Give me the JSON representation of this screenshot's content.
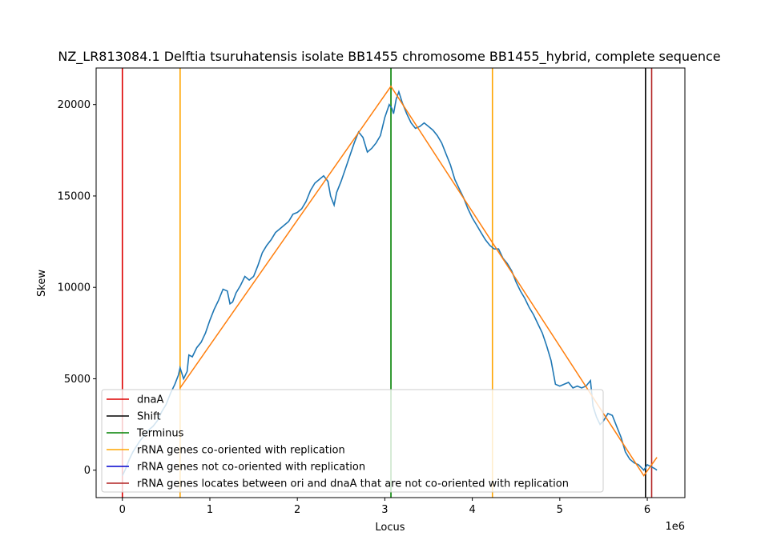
{
  "chart_data": {
    "type": "line",
    "title": "NZ_LR813084.1 Delftia tsuruhatensis isolate BB1455 chromosome BB1455_hybrid, complete sequence",
    "xlabel": "Locus",
    "ylabel": "Skew",
    "x_offset_label": "1e6",
    "xlim": [
      -300000,
      6430000
    ],
    "ylim": [
      -1500,
      22000
    ],
    "x_ticks": [
      0,
      1000000,
      2000000,
      3000000,
      4000000,
      5000000,
      6000000
    ],
    "x_tick_labels": [
      "0",
      "1",
      "2",
      "3",
      "4",
      "5",
      "6"
    ],
    "y_ticks": [
      0,
      5000,
      10000,
      15000,
      20000
    ],
    "y_tick_labels": [
      "0",
      "5000",
      "10000",
      "15000",
      "20000"
    ],
    "grid": false,
    "legend_position": "lower-left",
    "colors": {
      "skew": "#1f77b4",
      "fit": "#ff7f0e",
      "dnaA": "#dd0000",
      "shift": "#000000",
      "terminus": "#008000",
      "rrna_co": "#ffa500",
      "rrna_not_co": "#0000cd",
      "rrna_between": "#b22222"
    },
    "series": [
      {
        "key": "skew",
        "points": [
          [
            0,
            -300
          ],
          [
            40000,
            100
          ],
          [
            80000,
            600
          ],
          [
            120000,
            1000
          ],
          [
            160000,
            1300
          ],
          [
            200000,
            1600
          ],
          [
            250000,
            1900
          ],
          [
            300000,
            2200
          ],
          [
            350000,
            2400
          ],
          [
            400000,
            2700
          ],
          [
            450000,
            3200
          ],
          [
            500000,
            3600
          ],
          [
            550000,
            4200
          ],
          [
            600000,
            4700
          ],
          [
            640000,
            5200
          ],
          [
            660000,
            5600
          ],
          [
            700000,
            5000
          ],
          [
            740000,
            5400
          ],
          [
            760000,
            6300
          ],
          [
            800000,
            6200
          ],
          [
            850000,
            6700
          ],
          [
            900000,
            7000
          ],
          [
            950000,
            7500
          ],
          [
            1000000,
            8200
          ],
          [
            1050000,
            8800
          ],
          [
            1100000,
            9300
          ],
          [
            1150000,
            9900
          ],
          [
            1200000,
            9800
          ],
          [
            1230000,
            9100
          ],
          [
            1260000,
            9200
          ],
          [
            1300000,
            9700
          ],
          [
            1350000,
            10100
          ],
          [
            1400000,
            10600
          ],
          [
            1450000,
            10400
          ],
          [
            1500000,
            10600
          ],
          [
            1550000,
            11200
          ],
          [
            1600000,
            11900
          ],
          [
            1650000,
            12300
          ],
          [
            1700000,
            12600
          ],
          [
            1750000,
            13000
          ],
          [
            1800000,
            13200
          ],
          [
            1850000,
            13400
          ],
          [
            1900000,
            13600
          ],
          [
            1950000,
            14000
          ],
          [
            2000000,
            14100
          ],
          [
            2050000,
            14300
          ],
          [
            2100000,
            14700
          ],
          [
            2150000,
            15300
          ],
          [
            2200000,
            15700
          ],
          [
            2250000,
            15900
          ],
          [
            2300000,
            16100
          ],
          [
            2350000,
            15800
          ],
          [
            2380000,
            15000
          ],
          [
            2420000,
            14500
          ],
          [
            2450000,
            15200
          ],
          [
            2500000,
            15800
          ],
          [
            2550000,
            16500
          ],
          [
            2600000,
            17200
          ],
          [
            2650000,
            17900
          ],
          [
            2700000,
            18500
          ],
          [
            2750000,
            18200
          ],
          [
            2800000,
            17400
          ],
          [
            2850000,
            17600
          ],
          [
            2900000,
            17900
          ],
          [
            2950000,
            18300
          ],
          [
            3000000,
            19300
          ],
          [
            3050000,
            20000
          ],
          [
            3080000,
            19800
          ],
          [
            3100000,
            19500
          ],
          [
            3130000,
            20300
          ],
          [
            3160000,
            20700
          ],
          [
            3200000,
            20100
          ],
          [
            3250000,
            19500
          ],
          [
            3300000,
            19000
          ],
          [
            3350000,
            18700
          ],
          [
            3400000,
            18800
          ],
          [
            3450000,
            19000
          ],
          [
            3500000,
            18800
          ],
          [
            3550000,
            18600
          ],
          [
            3600000,
            18300
          ],
          [
            3650000,
            17900
          ],
          [
            3700000,
            17300
          ],
          [
            3750000,
            16700
          ],
          [
            3800000,
            15900
          ],
          [
            3850000,
            15400
          ],
          [
            3900000,
            14900
          ],
          [
            3950000,
            14300
          ],
          [
            4000000,
            13800
          ],
          [
            4050000,
            13400
          ],
          [
            4100000,
            13000
          ],
          [
            4150000,
            12600
          ],
          [
            4200000,
            12300
          ],
          [
            4250000,
            12100
          ],
          [
            4300000,
            12100
          ],
          [
            4350000,
            11600
          ],
          [
            4400000,
            11300
          ],
          [
            4450000,
            10900
          ],
          [
            4500000,
            10300
          ],
          [
            4550000,
            9800
          ],
          [
            4600000,
            9400
          ],
          [
            4650000,
            8900
          ],
          [
            4700000,
            8500
          ],
          [
            4750000,
            8000
          ],
          [
            4800000,
            7500
          ],
          [
            4850000,
            6800
          ],
          [
            4900000,
            6000
          ],
          [
            4950000,
            4700
          ],
          [
            5000000,
            4600
          ],
          [
            5050000,
            4700
          ],
          [
            5100000,
            4800
          ],
          [
            5150000,
            4500
          ],
          [
            5200000,
            4600
          ],
          [
            5250000,
            4500
          ],
          [
            5300000,
            4600
          ],
          [
            5350000,
            4900
          ],
          [
            5380000,
            3500
          ],
          [
            5420000,
            2900
          ],
          [
            5460000,
            2500
          ],
          [
            5500000,
            2700
          ],
          [
            5550000,
            3100
          ],
          [
            5600000,
            3000
          ],
          [
            5650000,
            2400
          ],
          [
            5700000,
            1800
          ],
          [
            5750000,
            1000
          ],
          [
            5800000,
            600
          ],
          [
            5850000,
            400
          ],
          [
            5900000,
            300
          ],
          [
            5960000,
            0
          ],
          [
            6000000,
            300
          ],
          [
            6040000,
            200
          ],
          [
            6080000,
            100
          ],
          [
            6110000,
            0
          ]
        ]
      },
      {
        "key": "fit",
        "points": [
          [
            660000,
            4500
          ],
          [
            3070000,
            21000
          ],
          [
            5960000,
            -300
          ],
          [
            6110000,
            700
          ]
        ]
      }
    ],
    "vertical_lines": [
      {
        "key": "dnaA",
        "x": 0
      },
      {
        "key": "rrna_co",
        "x": 660000
      },
      {
        "key": "terminus",
        "x": 3070000
      },
      {
        "key": "rrna_co",
        "x": 4230000
      },
      {
        "key": "shift",
        "x": 5980000
      },
      {
        "key": "rrna_between",
        "x": 6050000
      }
    ],
    "legend": [
      {
        "key": "dnaA",
        "label": "dnaA"
      },
      {
        "key": "shift",
        "label": "Shift"
      },
      {
        "key": "terminus",
        "label": "Terminus"
      },
      {
        "key": "rrna_co",
        "label": "rRNA genes co-oriented with replication"
      },
      {
        "key": "rrna_not_co",
        "label": "rRNA genes not co-oriented with replication"
      },
      {
        "key": "rrna_between",
        "label": "rRNA genes locates between ori and dnaA that are not co-oriented with replication"
      }
    ]
  }
}
